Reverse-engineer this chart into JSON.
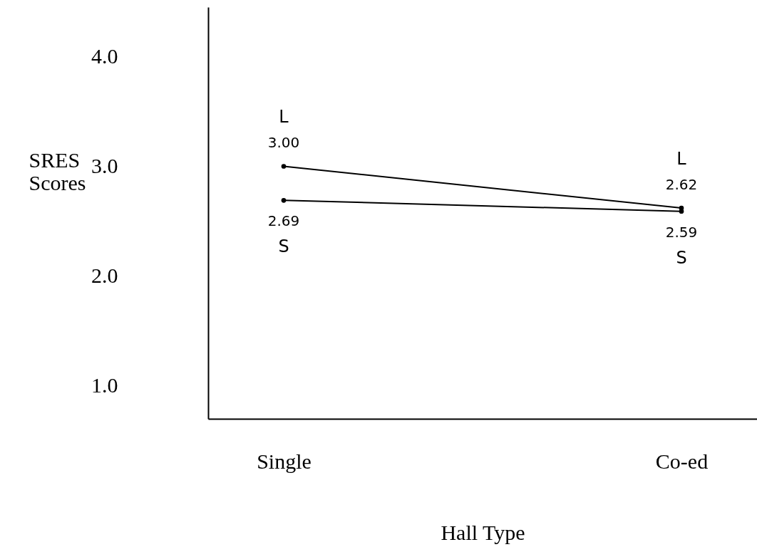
{
  "chart_data": {
    "type": "line",
    "xlabel": "Hall Type",
    "ylabel": "SRES Scores",
    "categories": [
      "Single",
      "Co-ed"
    ],
    "series": [
      {
        "name": "L",
        "color": "#000000",
        "values": [
          3.0,
          2.62
        ],
        "value_labels": [
          "3.00",
          "2.62"
        ]
      },
      {
        "name": "S",
        "color": "#000000",
        "values": [
          2.69,
          2.59
        ],
        "value_labels": [
          "2.69",
          "2.59"
        ]
      }
    ],
    "ylim": [
      0.7,
      4.45
    ],
    "yticks": [
      {
        "value": 1,
        "label": "1.0"
      },
      {
        "value": 2,
        "label": "2.0"
      },
      {
        "value": 3,
        "label": "3.0"
      },
      {
        "value": 4,
        "label": "4.0"
      }
    ],
    "grid": false,
    "marker": "circle"
  }
}
